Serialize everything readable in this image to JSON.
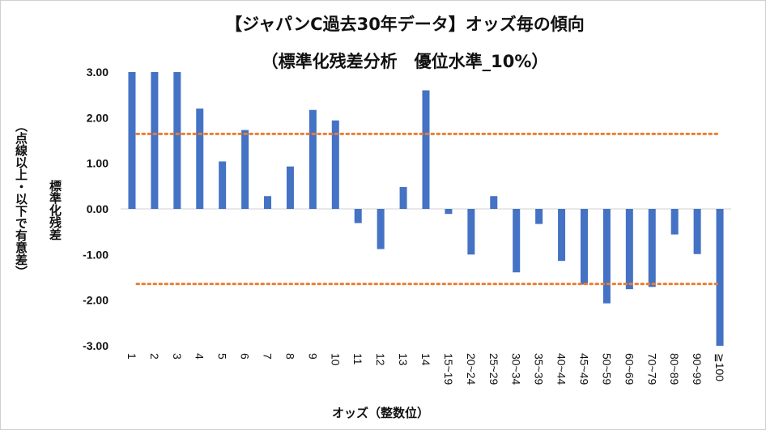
{
  "chart_data": {
    "type": "bar",
    "title": "【ジャパンC過去30年データ】オッズ毎の傾向",
    "subtitle": "（標準化残差分析　優位水準_10%）",
    "ylabel_main": "標準化残差",
    "ylabel_note": "（点線以上・以下で有意差）",
    "xlabel": "オッズ（整数位）",
    "ylim": [
      -3.0,
      3.0
    ],
    "yticks": [
      "3.00",
      "2.00",
      "1.00",
      "0.00",
      "-1.00",
      "-2.00",
      "-3.00"
    ],
    "ytick_values": [
      3,
      2,
      1,
      0,
      -1,
      -2,
      -3
    ],
    "categories": [
      "1",
      "2",
      "3",
      "4",
      "5",
      "6",
      "7",
      "8",
      "9",
      "10",
      "11",
      "12",
      "13",
      "14",
      "15~19",
      "20~24",
      "25~29",
      "30~34",
      "35~39",
      "40~44",
      "45~49",
      "50~59",
      "60~69",
      "70~79",
      "80~89",
      "90~99",
      "≧100"
    ],
    "values": [
      3.0,
      3.0,
      3.0,
      2.2,
      1.04,
      1.73,
      0.28,
      0.93,
      2.17,
      1.94,
      -0.31,
      -0.88,
      0.48,
      2.6,
      -0.11,
      -1.0,
      0.28,
      -1.39,
      -0.33,
      -1.14,
      -1.66,
      -2.07,
      -1.76,
      -1.71,
      -0.56,
      -0.99,
      -3.0
    ],
    "reference_lines": [
      1.645,
      -1.645
    ],
    "bar_color": "#4472c4",
    "reference_color": "#ed7d31",
    "grid": false
  }
}
